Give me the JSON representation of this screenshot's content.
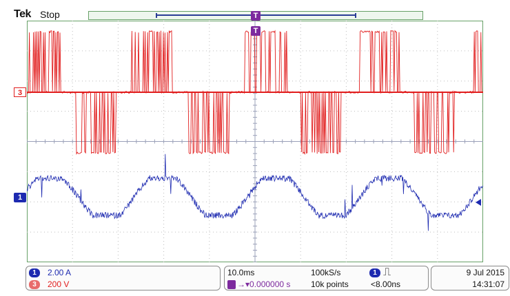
{
  "header": {
    "brand": "Tek",
    "status": "Stop",
    "trigger_glyph": "T"
  },
  "markers": {
    "ch3": "3",
    "ch1": "1",
    "trigger": "T"
  },
  "colors": {
    "ch1": "#1d2ab0",
    "ch3": "#e11d1d",
    "grid": "#67a067",
    "trigger": "#7d2a9e"
  },
  "channels": [
    {
      "id": "1",
      "scale": "2.00 A",
      "color": "#1d2ab0"
    },
    {
      "id": "3",
      "scale": "200 V",
      "color": "#e11d1d"
    }
  ],
  "timebase": {
    "scale": "10.0ms",
    "sample_rate": "100kS/s",
    "trigger_position": "▾0.000000 s",
    "record_length": "10k points",
    "trigger_source": "1",
    "trigger_type_icon": "rising-edge-pulse-icon",
    "trigger_type_glyph": "⎍",
    "trigger_detail": "<8.00ns"
  },
  "datetime": {
    "date": "9 Jul  2015",
    "time": "14:31:07"
  }
}
